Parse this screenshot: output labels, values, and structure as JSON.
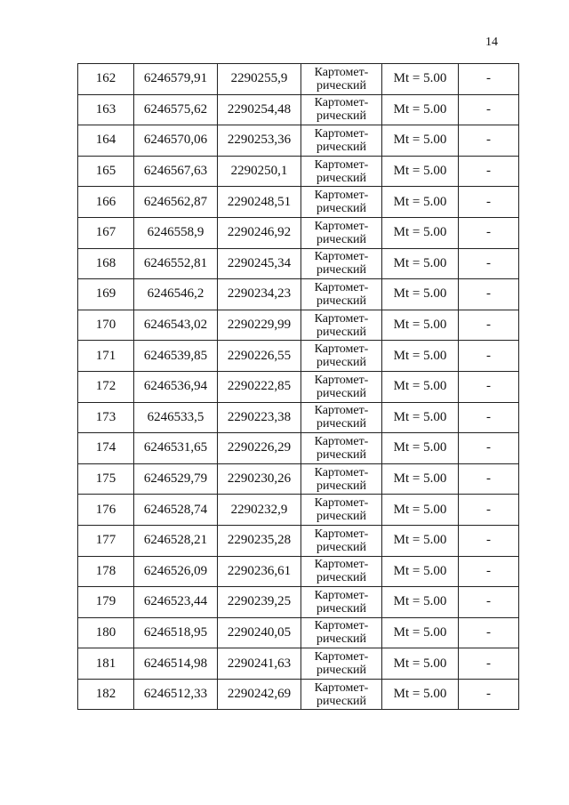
{
  "page_number": "14",
  "method_line1": "Картомет-",
  "method_line2": "рический",
  "rows": [
    {
      "n": "162",
      "x": "6246579,91",
      "y": "2290255,9",
      "mt": "Mt = 5.00",
      "note": "-"
    },
    {
      "n": "163",
      "x": "6246575,62",
      "y": "2290254,48",
      "mt": "Mt = 5.00",
      "note": "-"
    },
    {
      "n": "164",
      "x": "6246570,06",
      "y": "2290253,36",
      "mt": "Mt = 5.00",
      "note": "-"
    },
    {
      "n": "165",
      "x": "6246567,63",
      "y": "2290250,1",
      "mt": "Mt = 5.00",
      "note": "-"
    },
    {
      "n": "166",
      "x": "6246562,87",
      "y": "2290248,51",
      "mt": "Mt = 5.00",
      "note": "-"
    },
    {
      "n": "167",
      "x": "6246558,9",
      "y": "2290246,92",
      "mt": "Mt = 5.00",
      "note": "-"
    },
    {
      "n": "168",
      "x": "6246552,81",
      "y": "2290245,34",
      "mt": "Mt = 5.00",
      "note": "-"
    },
    {
      "n": "169",
      "x": "6246546,2",
      "y": "2290234,23",
      "mt": "Mt = 5.00",
      "note": "-"
    },
    {
      "n": "170",
      "x": "6246543,02",
      "y": "2290229,99",
      "mt": "Mt = 5.00",
      "note": "-"
    },
    {
      "n": "171",
      "x": "6246539,85",
      "y": "2290226,55",
      "mt": "Mt = 5.00",
      "note": "-"
    },
    {
      "n": "172",
      "x": "6246536,94",
      "y": "2290222,85",
      "mt": "Mt = 5.00",
      "note": "-"
    },
    {
      "n": "173",
      "x": "6246533,5",
      "y": "2290223,38",
      "mt": "Mt = 5.00",
      "note": "-"
    },
    {
      "n": "174",
      "x": "6246531,65",
      "y": "2290226,29",
      "mt": "Mt = 5.00",
      "note": "-"
    },
    {
      "n": "175",
      "x": "6246529,79",
      "y": "2290230,26",
      "mt": "Mt = 5.00",
      "note": "-"
    },
    {
      "n": "176",
      "x": "6246528,74",
      "y": "2290232,9",
      "mt": "Mt = 5.00",
      "note": "-"
    },
    {
      "n": "177",
      "x": "6246528,21",
      "y": "2290235,28",
      "mt": "Mt = 5.00",
      "note": "-"
    },
    {
      "n": "178",
      "x": "6246526,09",
      "y": "2290236,61",
      "mt": "Mt = 5.00",
      "note": "-"
    },
    {
      "n": "179",
      "x": "6246523,44",
      "y": "2290239,25",
      "mt": "Mt = 5.00",
      "note": "-"
    },
    {
      "n": "180",
      "x": "6246518,95",
      "y": "2290240,05",
      "mt": "Mt = 5.00",
      "note": "-"
    },
    {
      "n": "181",
      "x": "6246514,98",
      "y": "2290241,63",
      "mt": "Mt = 5.00",
      "note": "-"
    },
    {
      "n": "182",
      "x": "6246512,33",
      "y": "2290242,69",
      "mt": "Mt = 5.00",
      "note": "-"
    }
  ]
}
